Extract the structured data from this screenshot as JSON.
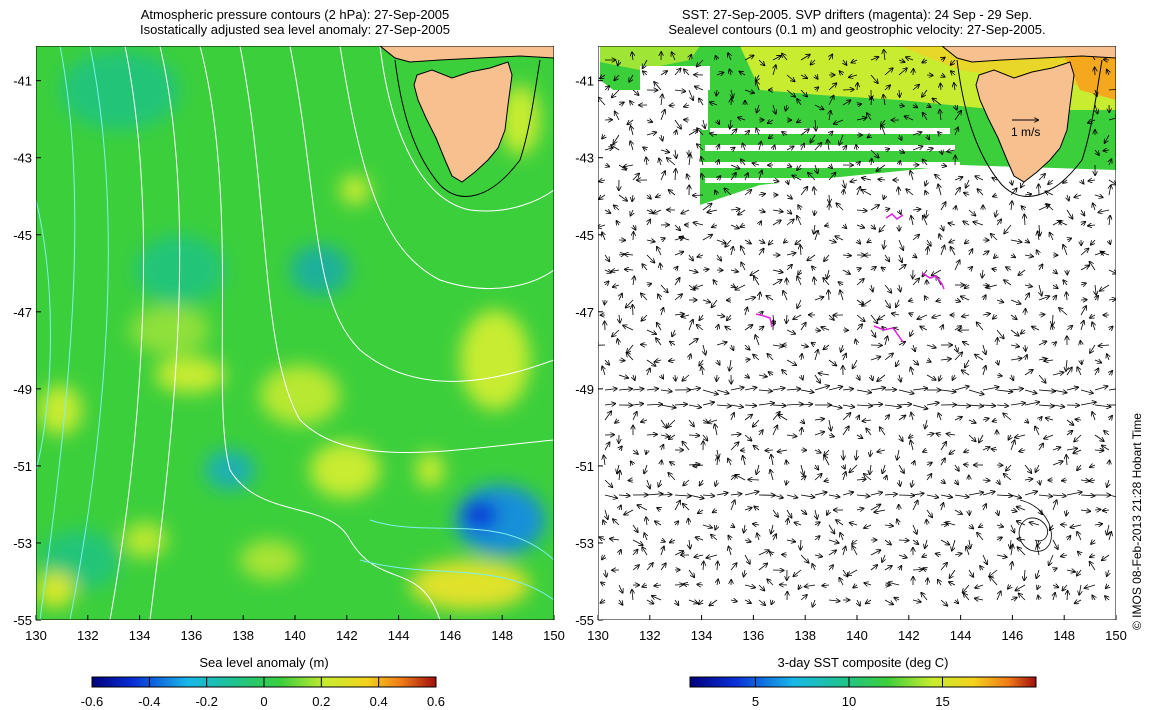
{
  "left_panel": {
    "title_line1": "Atmospheric pressure contours (2 hPa): 27-Sep-2005",
    "title_line2": "Isostatically adjusted sea level anomaly: 27-Sep-2005",
    "colorbar_label": "Sea level anomaly (m)",
    "colorbar_ticks": [
      "-0.6",
      "-0.4",
      "-0.2",
      "0",
      "0.2",
      "0.4",
      "0.6"
    ]
  },
  "right_panel": {
    "title_line1": "SST: 27-Sep-2005. SVP drifters (magenta): 24 Sep - 29 Sep.",
    "title_line2": "Sealevel contours (0.1 m) and geostrophic velocity: 27-Sep-2005.",
    "colorbar_label": "3-day SST composite (deg C)",
    "colorbar_ticks": [
      "5",
      "10",
      "15"
    ],
    "velocity_scale_label": "1 m/s"
  },
  "axes": {
    "x_ticks": [
      "130",
      "132",
      "134",
      "136",
      "138",
      "140",
      "142",
      "144",
      "146",
      "148",
      "150"
    ],
    "y_ticks": [
      "-41",
      "-43",
      "-45",
      "-47",
      "-49",
      "-51",
      "-53",
      "-55"
    ],
    "lon_range": [
      130,
      150
    ],
    "lat_range": [
      -55,
      -40.1
    ]
  },
  "copyright": "© IMOS 08-Feb-2013 21:28 Hobart Time",
  "colors": {
    "land": "#f7c08f",
    "anomaly_base": "#3ccf3c",
    "drifters": "#e020e0",
    "vectors": "#000000"
  }
}
